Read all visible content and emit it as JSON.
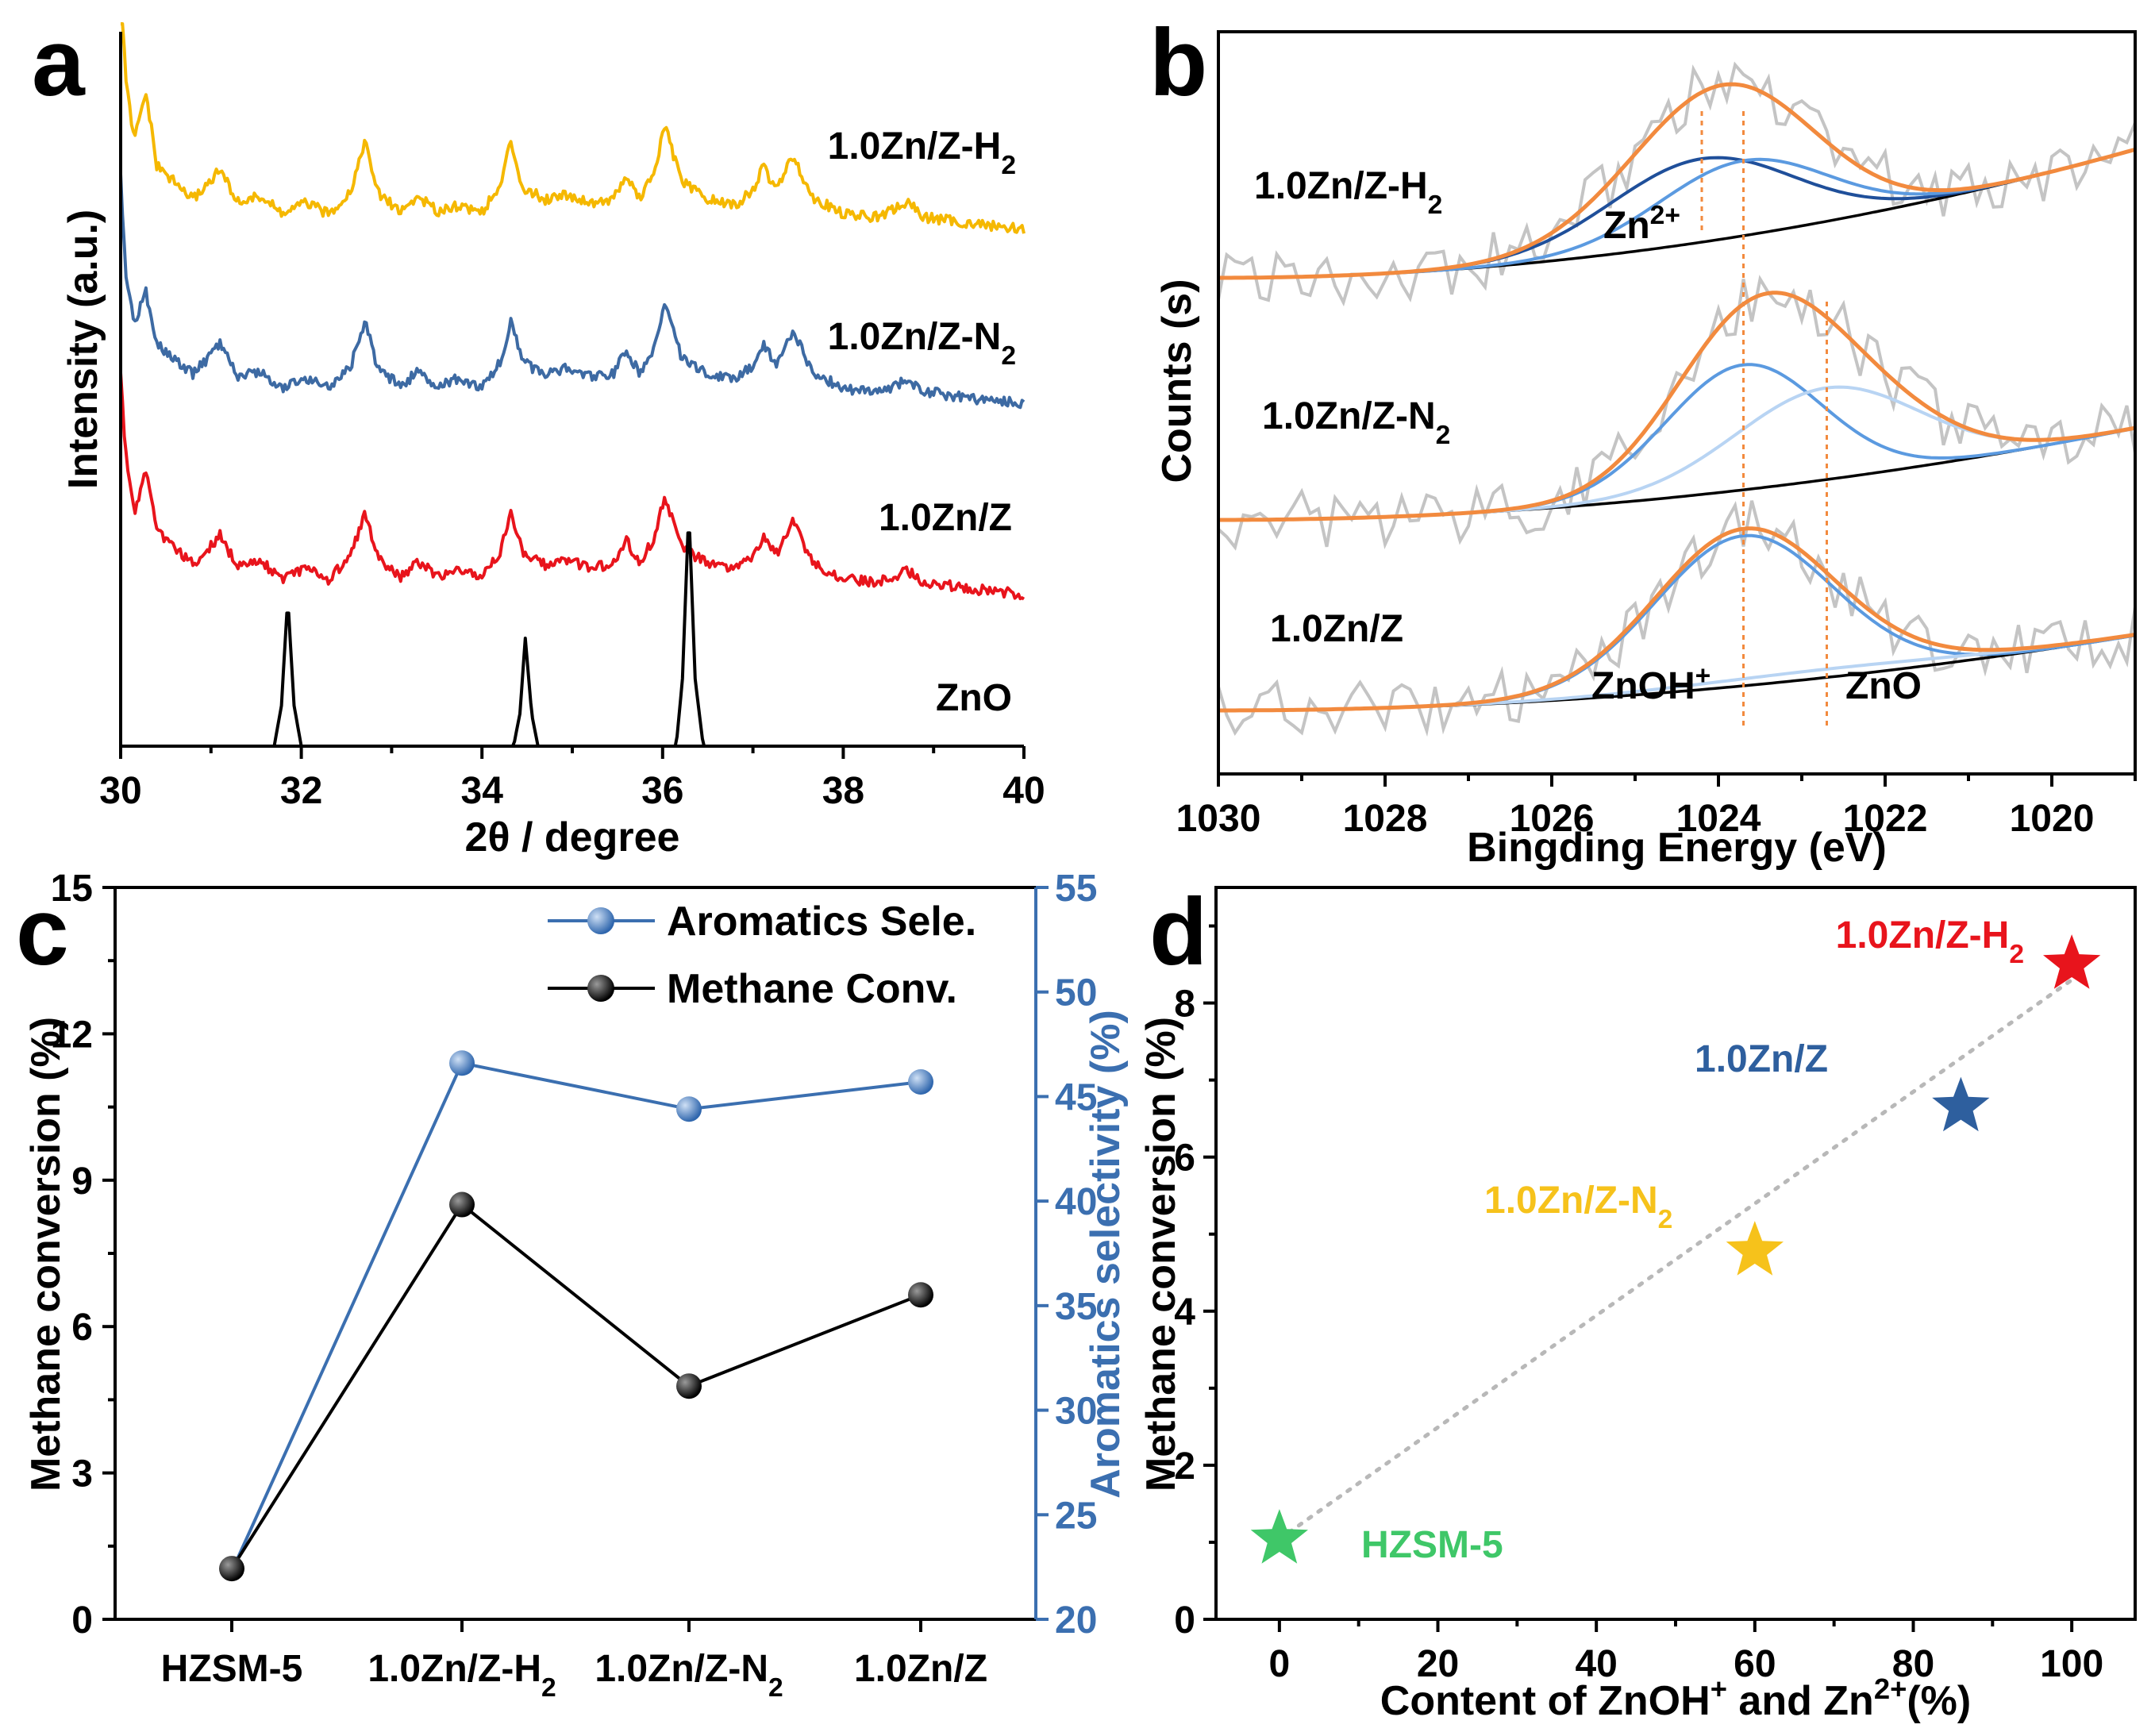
{
  "chart_data": [
    {
      "panel": "a",
      "type": "line",
      "xlabel": "2θ / degree",
      "ylabel": "Intensity (a.u.)",
      "xlim": [
        30,
        40
      ],
      "xticks": [
        "30",
        "32",
        "34",
        "36",
        "38",
        "40"
      ],
      "series": [
        {
          "name": "1.0Zn/Z-H2",
          "color": "#f5b800",
          "offset": 3.0,
          "points": [
            [
              30.0,
              2.1
            ],
            [
              30.05,
              1.05
            ],
            [
              30.15,
              0.62
            ],
            [
              30.28,
              0.95
            ],
            [
              30.4,
              0.45
            ],
            [
              30.8,
              0.22
            ],
            [
              31.1,
              0.42
            ],
            [
              31.3,
              0.2
            ],
            [
              31.55,
              0.24
            ],
            [
              31.8,
              0.12
            ],
            [
              32.05,
              0.2
            ],
            [
              32.3,
              0.12
            ],
            [
              32.55,
              0.28
            ],
            [
              32.7,
              0.62
            ],
            [
              32.85,
              0.26
            ],
            [
              33.1,
              0.14
            ],
            [
              33.3,
              0.24
            ],
            [
              33.5,
              0.14
            ],
            [
              33.7,
              0.18
            ],
            [
              34.0,
              0.14
            ],
            [
              34.2,
              0.3
            ],
            [
              34.32,
              0.62
            ],
            [
              34.45,
              0.3
            ],
            [
              34.7,
              0.22
            ],
            [
              34.9,
              0.26
            ],
            [
              35.2,
              0.2
            ],
            [
              35.45,
              0.22
            ],
            [
              35.6,
              0.38
            ],
            [
              35.75,
              0.22
            ],
            [
              35.9,
              0.4
            ],
            [
              36.03,
              0.72
            ],
            [
              36.2,
              0.35
            ],
            [
              36.5,
              0.22
            ],
            [
              36.8,
              0.18
            ],
            [
              37.0,
              0.28
            ],
            [
              37.12,
              0.45
            ],
            [
              37.25,
              0.28
            ],
            [
              37.45,
              0.52
            ],
            [
              37.65,
              0.24
            ],
            [
              38.0,
              0.12
            ],
            [
              38.4,
              0.1
            ],
            [
              38.7,
              0.2
            ],
            [
              38.9,
              0.1
            ],
            [
              39.5,
              0.05
            ],
            [
              40.0,
              0.02
            ]
          ]
        },
        {
          "name": "1.0Zn/Z-N2",
          "color": "#3d6aa3",
          "offset": 2.0,
          "points": [
            [
              30.0,
              1.55
            ],
            [
              30.05,
              0.95
            ],
            [
              30.15,
              0.55
            ],
            [
              30.28,
              0.78
            ],
            [
              30.4,
              0.42
            ],
            [
              30.8,
              0.22
            ],
            [
              31.1,
              0.42
            ],
            [
              31.3,
              0.2
            ],
            [
              31.55,
              0.24
            ],
            [
              31.8,
              0.12
            ],
            [
              32.05,
              0.2
            ],
            [
              32.3,
              0.12
            ],
            [
              32.55,
              0.28
            ],
            [
              32.7,
              0.58
            ],
            [
              32.85,
              0.26
            ],
            [
              33.1,
              0.14
            ],
            [
              33.3,
              0.24
            ],
            [
              33.5,
              0.14
            ],
            [
              33.7,
              0.18
            ],
            [
              34.0,
              0.14
            ],
            [
              34.2,
              0.3
            ],
            [
              34.32,
              0.58
            ],
            [
              34.45,
              0.3
            ],
            [
              34.7,
              0.22
            ],
            [
              34.9,
              0.26
            ],
            [
              35.2,
              0.2
            ],
            [
              35.45,
              0.22
            ],
            [
              35.6,
              0.38
            ],
            [
              35.75,
              0.22
            ],
            [
              35.9,
              0.4
            ],
            [
              36.03,
              0.68
            ],
            [
              36.2,
              0.35
            ],
            [
              36.5,
              0.22
            ],
            [
              36.8,
              0.18
            ],
            [
              37.0,
              0.28
            ],
            [
              37.12,
              0.42
            ],
            [
              37.25,
              0.28
            ],
            [
              37.45,
              0.52
            ],
            [
              37.65,
              0.24
            ],
            [
              38.0,
              0.12
            ],
            [
              38.4,
              0.1
            ],
            [
              38.7,
              0.18
            ],
            [
              38.9,
              0.1
            ],
            [
              39.5,
              0.05
            ],
            [
              40.0,
              0.02
            ]
          ]
        },
        {
          "name": "1.0Zn/Z",
          "color": "#e8141c",
          "offset": 1.0,
          "points": [
            [
              30.0,
              1.55
            ],
            [
              30.05,
              1.0
            ],
            [
              30.15,
              0.58
            ],
            [
              30.28,
              0.85
            ],
            [
              30.4,
              0.45
            ],
            [
              30.8,
              0.22
            ],
            [
              31.1,
              0.42
            ],
            [
              31.3,
              0.2
            ],
            [
              31.55,
              0.24
            ],
            [
              31.8,
              0.12
            ],
            [
              32.05,
              0.2
            ],
            [
              32.3,
              0.12
            ],
            [
              32.55,
              0.28
            ],
            [
              32.7,
              0.58
            ],
            [
              32.85,
              0.26
            ],
            [
              33.1,
              0.14
            ],
            [
              33.3,
              0.24
            ],
            [
              33.5,
              0.14
            ],
            [
              33.7,
              0.18
            ],
            [
              34.0,
              0.14
            ],
            [
              34.2,
              0.3
            ],
            [
              34.32,
              0.58
            ],
            [
              34.45,
              0.3
            ],
            [
              34.7,
              0.22
            ],
            [
              34.9,
              0.26
            ],
            [
              35.2,
              0.2
            ],
            [
              35.45,
              0.22
            ],
            [
              35.6,
              0.38
            ],
            [
              35.75,
              0.22
            ],
            [
              35.9,
              0.4
            ],
            [
              36.03,
              0.68
            ],
            [
              36.2,
              0.35
            ],
            [
              36.5,
              0.22
            ],
            [
              36.8,
              0.18
            ],
            [
              37.0,
              0.28
            ],
            [
              37.12,
              0.42
            ],
            [
              37.25,
              0.28
            ],
            [
              37.45,
              0.52
            ],
            [
              37.65,
              0.24
            ],
            [
              38.0,
              0.12
            ],
            [
              38.4,
              0.1
            ],
            [
              38.7,
              0.18
            ],
            [
              38.9,
              0.1
            ],
            [
              39.5,
              0.05
            ],
            [
              40.0,
              0.02
            ]
          ]
        },
        {
          "name": "ZnO",
          "color": "#000000",
          "offset": 0.0,
          "points": [
            [
              30.0,
              0.0
            ],
            [
              31.7,
              0.0
            ],
            [
              31.78,
              0.15
            ],
            [
              31.85,
              0.55
            ],
            [
              31.92,
              0.15
            ],
            [
              32.0,
              0.0
            ],
            [
              34.35,
              0.0
            ],
            [
              34.42,
              0.12
            ],
            [
              34.48,
              0.4
            ],
            [
              34.55,
              0.12
            ],
            [
              34.62,
              0.0
            ],
            [
              36.15,
              0.0
            ],
            [
              36.22,
              0.25
            ],
            [
              36.29,
              0.88
            ],
            [
              36.36,
              0.25
            ],
            [
              36.45,
              0.0
            ],
            [
              40.0,
              0.0
            ]
          ]
        }
      ],
      "labels": [
        "1.0Zn/Z-H",
        "1.0Zn/Z-N",
        "1.0Zn/Z",
        "ZnO"
      ],
      "subscripts": [
        "2",
        "2"
      ]
    },
    {
      "panel": "b",
      "type": "line",
      "xlabel": "Bingding Energy (eV)",
      "ylabel": "Counts (s)",
      "xlim": [
        1030,
        1019
      ],
      "xticks": [
        "1030",
        "1028",
        "1026",
        "1024",
        "1022",
        "1020"
      ],
      "spectra": [
        {
          "name": "1.0Zn/Z-H2",
          "base_level": 2.3,
          "bg_start": 0.0,
          "bg_end": 0.55,
          "fit_color": "#f28a3e",
          "components": [
            {
              "name": "Zn2+",
              "center": 1024.2,
              "fwhm": 2.6,
              "height": 0.5,
              "color": "#1f4f9a"
            },
            {
              "name": "ZnOH+",
              "center": 1023.7,
              "fwhm": 2.4,
              "height": 0.45,
              "color": "#5b9ae0"
            }
          ]
        },
        {
          "name": "1.0Zn/Z-N2",
          "base_level": 1.2,
          "bg_start": 0.0,
          "bg_end": 0.55,
          "fit_color": "#f28a3e",
          "components": [
            {
              "name": "ZnOH+",
              "center": 1023.7,
              "fwhm": 2.2,
              "height": 0.75,
              "color": "#5b9ae0"
            },
            {
              "name": "ZnO",
              "center": 1022.7,
              "fwhm": 2.6,
              "height": 0.55,
              "color": "#b8d4f3"
            }
          ]
        },
        {
          "name": "1.0Zn/Z",
          "base_level": 0.0,
          "bg_start": 0.0,
          "bg_end": 0.45,
          "fit_color": "#f28a3e",
          "components": [
            {
              "name": "ZnOH+",
              "center": 1023.7,
              "fwhm": 2.5,
              "height": 0.9,
              "color": "#5b9ae0"
            },
            {
              "name": "ZnO",
              "center": 1022.7,
              "fwhm": 4.0,
              "height": 0.05,
              "color": "#b8d4f3"
            }
          ]
        }
      ],
      "vlines": [
        1024.2,
        1023.7,
        1022.7
      ],
      "labels": [
        "1.0Zn/Z-H",
        "1.0Zn/Z-N",
        "1.0Zn/Z",
        "Zn",
        "ZnOH",
        "ZnO"
      ],
      "superscripts": [
        "2+",
        "+"
      ],
      "subscripts": [
        "2",
        "2"
      ]
    },
    {
      "panel": "c",
      "type": "line",
      "categories": [
        "HZSM-5",
        "1.0Zn/Z-H",
        "1.0Zn/Z-N",
        "1.0Zn/Z"
      ],
      "category_subscripts": [
        "",
        "2",
        "2",
        ""
      ],
      "ylabel": "Methane conversion (%)",
      "y2label": "Aromatics selectivity (%)",
      "ylim": [
        0,
        15
      ],
      "yticks": [
        "0",
        "3",
        "6",
        "9",
        "12",
        "15"
      ],
      "y2lim": [
        20,
        55
      ],
      "y2ticks": [
        "20",
        "25",
        "30",
        "35",
        "40",
        "45",
        "50",
        "55"
      ],
      "series": [
        {
          "name": "Aromatics Sele.",
          "axis": "right",
          "color": "#3b6fb0",
          "values": [
            22.3,
            46.6,
            44.4,
            45.7
          ]
        },
        {
          "name": "Methane Conv.",
          "axis": "left",
          "color": "#000000",
          "values": [
            1.04,
            8.5,
            4.78,
            6.65
          ]
        }
      ]
    },
    {
      "panel": "d",
      "type": "scatter",
      "xlabel": "Content of ZnOH",
      "xlabel_parts": [
        "+",
        " and Zn",
        "2+",
        "(%)"
      ],
      "ylabel": "Methane conversion (%)",
      "xlim": [
        -8,
        108
      ],
      "ylim": [
        0,
        9.5
      ],
      "xticks": [
        "0",
        "20",
        "40",
        "60",
        "80",
        "100"
      ],
      "yticks": [
        "0",
        "2",
        "4",
        "6",
        "8"
      ],
      "points": [
        {
          "label": "HZSM-5",
          "sub": "",
          "x": 0,
          "y": 1.04,
          "color": "#3fc768"
        },
        {
          "label": "1.0Zn/Z-N",
          "sub": "2",
          "x": 60,
          "y": 4.78,
          "color": "#f6c21b"
        },
        {
          "label": "1.0Zn/Z",
          "sub": "",
          "x": 86,
          "y": 6.65,
          "color": "#2e5f9e"
        },
        {
          "label": "1.0Zn/Z-H",
          "sub": "2",
          "x": 100,
          "y": 8.5,
          "color": "#e8141c"
        }
      ],
      "trend": {
        "from": [
          0,
          1.04
        ],
        "to": [
          100,
          8.3
        ],
        "color": "#b8b8b8"
      }
    }
  ],
  "panel_letters": [
    "a",
    "b",
    "c",
    "d"
  ]
}
